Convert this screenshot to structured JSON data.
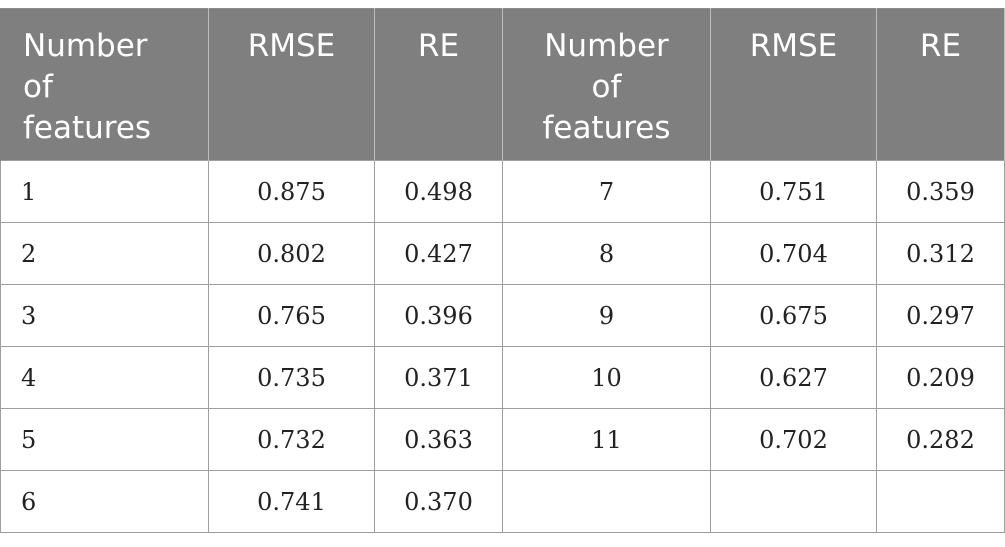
{
  "table": {
    "headers": [
      "Number\nof\nfeatures",
      "RMSE",
      "RE",
      "Number\nof\nfeatures",
      "RMSE",
      "RE"
    ],
    "rows": [
      [
        "1",
        "0.875",
        "0.498",
        "7",
        "0.751",
        "0.359"
      ],
      [
        "2",
        "0.802",
        "0.427",
        "8",
        "0.704",
        "0.312"
      ],
      [
        "3",
        "0.765",
        "0.396",
        "9",
        "0.675",
        "0.297"
      ],
      [
        "4",
        "0.735",
        "0.371",
        "10",
        "0.627",
        "0.209"
      ],
      [
        "5",
        "0.732",
        "0.363",
        "11",
        "0.702",
        "0.282"
      ],
      [
        "6",
        "0.741",
        "0.370",
        "",
        "",
        ""
      ]
    ]
  }
}
